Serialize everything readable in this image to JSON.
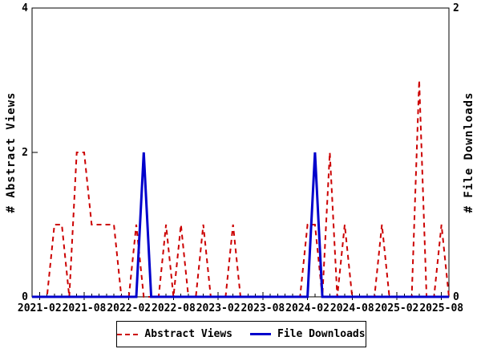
{
  "chart_data": {
    "type": "line",
    "title": "",
    "grid": false,
    "legend_position": "bottom-center-boxed",
    "x": [
      "2021-01",
      "2021-02",
      "2021-03",
      "2021-04",
      "2021-05",
      "2021-06",
      "2021-07",
      "2021-08",
      "2021-09",
      "2021-10",
      "2021-11",
      "2021-12",
      "2022-01",
      "2022-02",
      "2022-03",
      "2022-04",
      "2022-05",
      "2022-06",
      "2022-07",
      "2022-08",
      "2022-09",
      "2022-10",
      "2022-11",
      "2022-12",
      "2023-01",
      "2023-02",
      "2023-03",
      "2023-04",
      "2023-05",
      "2023-06",
      "2023-07",
      "2023-08",
      "2023-09",
      "2023-10",
      "2023-11",
      "2023-12",
      "2024-01",
      "2024-02",
      "2024-03",
      "2024-04",
      "2024-05",
      "2024-06",
      "2024-07",
      "2024-08",
      "2024-09",
      "2024-10",
      "2024-11",
      "2024-12",
      "2025-01",
      "2025-02",
      "2025-03",
      "2025-04",
      "2025-05",
      "2025-06",
      "2025-07",
      "2025-08",
      "2025-09"
    ],
    "x_tick_labels": [
      "2021-02",
      "2021-08",
      "2022-02",
      "2022-08",
      "2023-02",
      "2023-08",
      "2024-02",
      "2024-08",
      "2025-02",
      "2025-08"
    ],
    "left_axis": {
      "label": "# Abstract Views",
      "min": 0,
      "max": 4,
      "tick_values": [
        0,
        2,
        4
      ]
    },
    "right_axis": {
      "label": "# File Downloads",
      "min": 0,
      "max": 2,
      "tick_values": [
        0,
        2
      ]
    },
    "axis_color": "#000000",
    "background_color": "#ffffff",
    "series": [
      {
        "name": "Abstract Views",
        "axis": "left",
        "style": "dashed",
        "color": "#cc0000",
        "values": [
          0,
          0,
          0,
          1,
          1,
          0,
          2,
          2,
          1,
          1,
          1,
          1,
          0,
          0,
          1,
          0,
          0,
          0,
          1,
          0,
          1,
          0,
          0,
          1,
          0,
          0,
          0,
          1,
          0,
          0,
          0,
          0,
          0,
          0,
          0,
          0,
          0,
          1,
          1,
          0,
          2,
          0,
          1,
          0,
          0,
          0,
          0,
          1,
          0,
          0,
          0,
          0,
          3,
          0,
          0,
          1,
          0
        ]
      },
      {
        "name": "File Downloads",
        "axis": "right",
        "style": "solid",
        "color": "#0000cc",
        "values": [
          0,
          0,
          0,
          0,
          0,
          0,
          0,
          0,
          0,
          0,
          0,
          0,
          0,
          0,
          0,
          1,
          0,
          0,
          0,
          0,
          0,
          0,
          0,
          0,
          0,
          0,
          0,
          0,
          0,
          0,
          0,
          0,
          0,
          0,
          0,
          0,
          0,
          0,
          1,
          0,
          0,
          0,
          0,
          0,
          0,
          0,
          0,
          0,
          0,
          0,
          0,
          0,
          0,
          0,
          0,
          0,
          0
        ]
      }
    ]
  },
  "legend": {
    "entries": [
      {
        "label": "Abstract Views"
      },
      {
        "label": "File Downloads"
      }
    ]
  }
}
